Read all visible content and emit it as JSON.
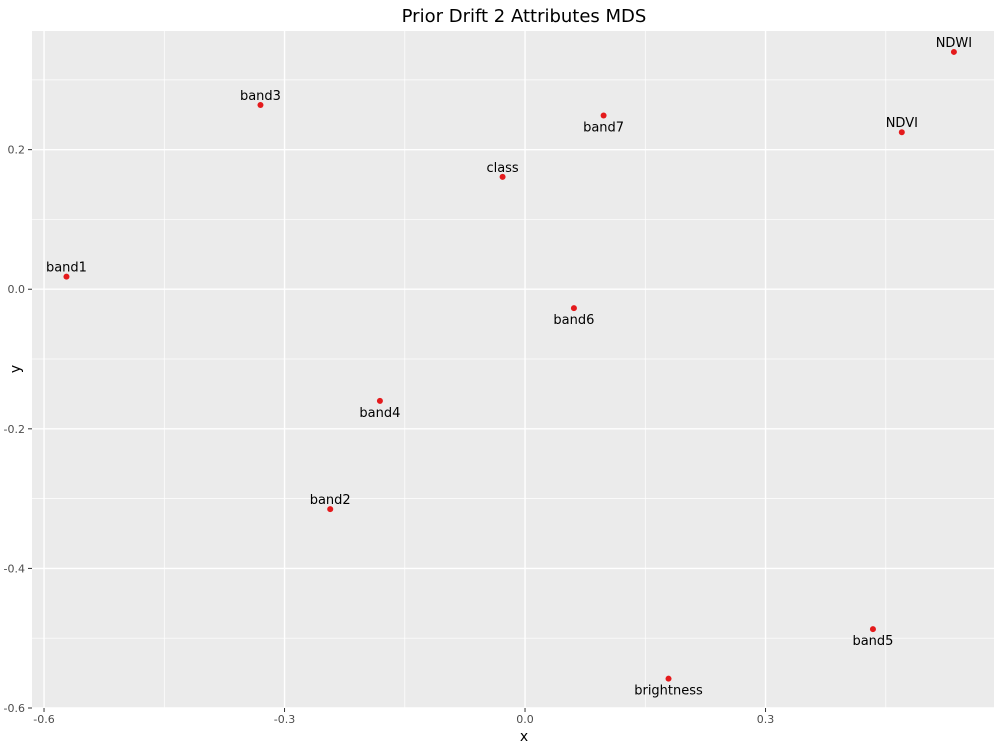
{
  "chart_data": {
    "type": "scatter",
    "title": "Prior Drift 2 Attributes MDS",
    "xlabel": "x",
    "ylabel": "y",
    "xlim": [
      -0.615,
      0.585
    ],
    "ylim": [
      -0.6,
      0.37
    ],
    "xticks": [
      -0.6,
      -0.3,
      0.0,
      0.3
    ],
    "xtick_labels": [
      "-0.6",
      "-0.3",
      "0.0",
      "0.3"
    ],
    "xminor": [
      -0.45,
      -0.15,
      0.15,
      0.45
    ],
    "yticks": [
      -0.6,
      -0.4,
      -0.2,
      0.0,
      0.2
    ],
    "ytick_labels": [
      "-0.6",
      "-0.4",
      "-0.2",
      "0.0",
      "0.2"
    ],
    "yminor": [
      -0.5,
      -0.3,
      -0.1,
      0.1,
      0.3
    ],
    "grid": true,
    "colors": {
      "panel": "#ebebeb",
      "grid": "#ffffff",
      "point": "#e41a1c",
      "text": "#000000",
      "tick_text": "#4d4d4d"
    },
    "points": [
      {
        "label": "NDWI",
        "x": 0.535,
        "y": 0.34,
        "label_pos": "above"
      },
      {
        "label": "NDVI",
        "x": 0.47,
        "y": 0.225,
        "label_pos": "above"
      },
      {
        "label": "band3",
        "x": -0.33,
        "y": 0.264,
        "label_pos": "above"
      },
      {
        "label": "band7",
        "x": 0.098,
        "y": 0.249,
        "label_pos": "below"
      },
      {
        "label": "class",
        "x": -0.028,
        "y": 0.161,
        "label_pos": "above"
      },
      {
        "label": "band1",
        "x": -0.572,
        "y": 0.018,
        "label_pos": "above"
      },
      {
        "label": "band6",
        "x": 0.061,
        "y": -0.027,
        "label_pos": "below"
      },
      {
        "label": "band4",
        "x": -0.181,
        "y": -0.16,
        "label_pos": "below"
      },
      {
        "label": "band2",
        "x": -0.243,
        "y": -0.315,
        "label_pos": "above"
      },
      {
        "label": "band5",
        "x": 0.434,
        "y": -0.487,
        "label_pos": "below"
      },
      {
        "label": "brightness",
        "x": 0.179,
        "y": -0.558,
        "label_pos": "below"
      }
    ]
  }
}
